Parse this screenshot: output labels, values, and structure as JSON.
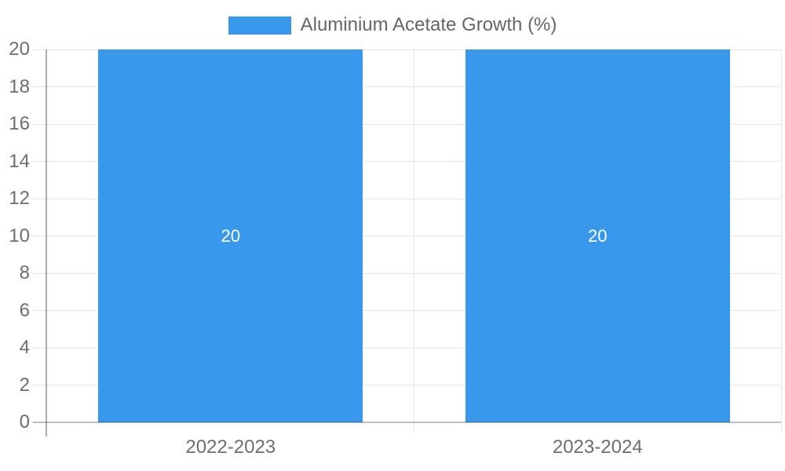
{
  "legend": {
    "label": "Aluminium Acetate Growth (%)"
  },
  "chart_data": {
    "type": "bar",
    "title": "",
    "categories": [
      "2022-2023",
      "2023-2024"
    ],
    "series": [
      {
        "name": "Aluminium Acetate Growth (%)",
        "values": [
          20,
          20
        ]
      }
    ],
    "data_labels": [
      "20",
      "20"
    ],
    "xlabel": "",
    "ylabel": "",
    "ylim": [
      0,
      20
    ],
    "ytick_step": 2,
    "ytick_labels": [
      "0",
      "2",
      "4",
      "6",
      "8",
      "10",
      "12",
      "14",
      "16",
      "18",
      "20"
    ],
    "grid": true,
    "legend_position": "top",
    "colors": {
      "bar": "#3899ec",
      "grid": "#e6e6e6",
      "baseline": "rgba(0,0,0,0.25)",
      "tick_label": "#6e6e6e",
      "legend_text": "#666666",
      "data_label": "#ffffff",
      "background": "#ffffff"
    }
  }
}
